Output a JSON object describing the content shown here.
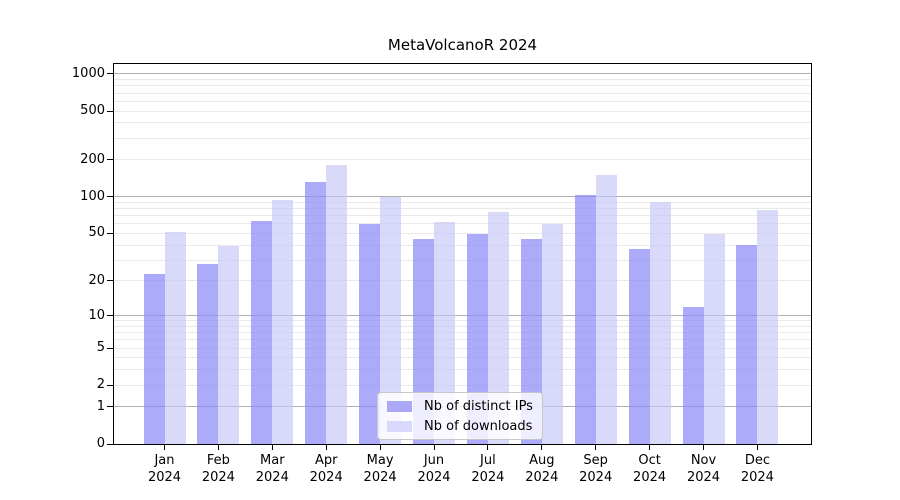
{
  "title": "MetaVolcanoR 2024",
  "chart_data": {
    "type": "bar",
    "title": "MetaVolcanoR 2024",
    "scale": "log1p",
    "grid": true,
    "categories": [
      "Jan",
      "Feb",
      "Mar",
      "Apr",
      "May",
      "Jun",
      "Jul",
      "Aug",
      "Sep",
      "Oct",
      "Nov",
      "Dec"
    ],
    "year_label": "2024",
    "series": [
      {
        "name": "Nb of distinct IPs",
        "color": "#a9a9f8",
        "fill": "rgba(138,138,246,0.72)",
        "values": [
          23,
          28,
          63,
          132,
          60,
          45,
          49,
          45,
          104,
          37,
          12,
          40
        ]
      },
      {
        "name": "Nb of downloads",
        "color": "#d9d9fb",
        "fill": "rgba(197,197,248,0.66)",
        "values": [
          51,
          39,
          95,
          182,
          100,
          62,
          75,
          60,
          152,
          90,
          49,
          78
        ]
      }
    ],
    "y_ticks": [
      0,
      1,
      2,
      5,
      10,
      20,
      50,
      100,
      200,
      500,
      1000
    ],
    "y_major_gridlines": [
      1,
      10,
      100,
      1000
    ],
    "y_minor_gridlines": [
      2,
      3,
      4,
      5,
      6,
      7,
      8,
      9,
      20,
      30,
      40,
      50,
      60,
      70,
      80,
      90,
      200,
      300,
      400,
      500,
      600,
      700,
      800,
      900
    ],
    "ylim": [
      0,
      1205
    ],
    "legend_position": "bottom-center"
  },
  "colors": {
    "background": "#ffffff",
    "spine": "#000000",
    "major_grid": "#b0b0b0",
    "minor_grid": "#e9e9e9",
    "text": "#000000"
  }
}
